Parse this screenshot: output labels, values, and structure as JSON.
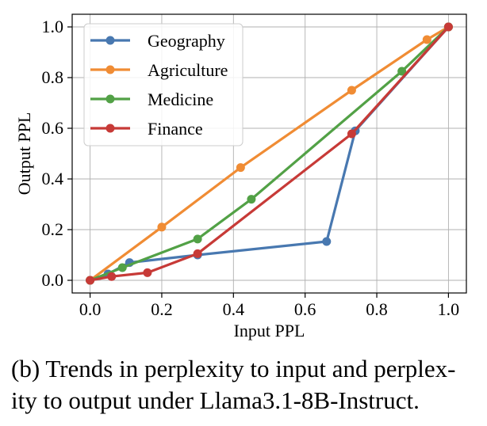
{
  "chart_data": {
    "type": "line",
    "xlabel": "Input PPL",
    "ylabel": "Output PPL",
    "xlim": [
      -0.05,
      1.05
    ],
    "ylim": [
      -0.05,
      1.05
    ],
    "x_ticks": [
      0.0,
      0.2,
      0.4,
      0.6,
      0.8,
      1.0
    ],
    "y_ticks": [
      0.0,
      0.2,
      0.4,
      0.6,
      0.8,
      1.0
    ],
    "x_tick_labels": [
      "0.0",
      "0.2",
      "0.4",
      "0.6",
      "0.8",
      "1.0"
    ],
    "y_tick_labels": [
      "0.0",
      "0.2",
      "0.4",
      "0.6",
      "0.8",
      "1.0"
    ],
    "grid": true,
    "legend_position": "top-left",
    "series": [
      {
        "name": "Geography",
        "color": "#4878b0",
        "x": [
          0.0,
          0.05,
          0.11,
          0.3,
          0.66,
          0.74,
          1.0
        ],
        "y": [
          0.0,
          0.025,
          0.07,
          0.1,
          0.153,
          0.59,
          1.0
        ]
      },
      {
        "name": "Agriculture",
        "color": "#f08c34",
        "x": [
          0.0,
          0.2,
          0.42,
          0.73,
          0.94,
          1.0
        ],
        "y": [
          0.0,
          0.21,
          0.445,
          0.75,
          0.95,
          1.0
        ]
      },
      {
        "name": "Medicine",
        "color": "#52a146",
        "x": [
          0.0,
          0.09,
          0.3,
          0.45,
          0.87,
          1.0
        ],
        "y": [
          0.0,
          0.05,
          0.163,
          0.32,
          0.825,
          1.0
        ]
      },
      {
        "name": "Finance",
        "color": "#c73a37",
        "x": [
          0.0,
          0.06,
          0.16,
          0.3,
          0.73,
          1.0
        ],
        "y": [
          0.0,
          0.015,
          0.03,
          0.105,
          0.578,
          1.0
        ]
      }
    ]
  },
  "caption": "(b) Trends in perplexity to input and perplex-ity to output under Llama3.1-8B-Instruct."
}
